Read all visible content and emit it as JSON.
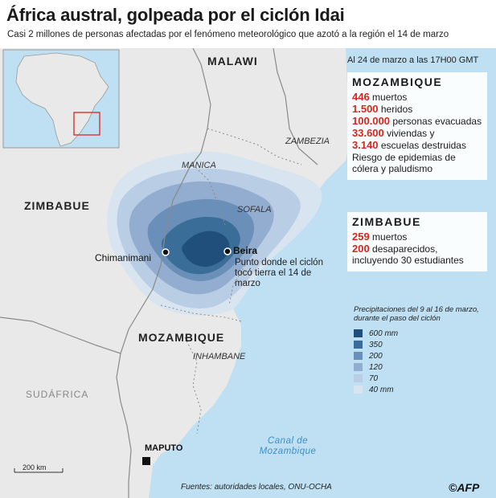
{
  "title": "África austral, golpeada por el ciclón Idai",
  "subtitle": "Casi 2 millones de personas afectadas por el fenómeno meteorológico que azotó a la región el 14 de marzo",
  "countries": {
    "malawi": "MALAWI",
    "zimbabue": "ZIMBABUE",
    "mozambique": "MOZAMBIQUE",
    "sudafrica": "SUDÁFRICA"
  },
  "provinces": {
    "zambezia": "ZAMBEZIA",
    "manica": "MANICA",
    "sofala": "SOFALA",
    "inhambane": "INHAMBANE"
  },
  "places": {
    "chimanimani": "Chimanimani",
    "beira": "Beira",
    "maputo": "MAPUTO",
    "beira_note": "Punto donde el ciclón tocó tierra el 14 de marzo",
    "canal": "Canal de Mozambique"
  },
  "info": {
    "header": "Al 24 de marzo a las 17H00 GMT",
    "mozambique": {
      "title": "MOZAMBIQUE",
      "stats": [
        {
          "num": "446",
          "text": " muertos"
        },
        {
          "num": "1.500",
          "text": " heridos"
        },
        {
          "num": "100.000",
          "text": " personas evacuadas"
        },
        {
          "num": "33.600",
          "text": " viviendas y"
        },
        {
          "num": "3.140",
          "text": " escuelas destruidas"
        },
        {
          "num": "",
          "text": "Riesgo de epidemias de cólera y paludismo"
        }
      ]
    },
    "zimbabue": {
      "title": "ZIMBABUE",
      "stats": [
        {
          "num": "259",
          "text": " muertos"
        },
        {
          "num": "200",
          "text": " desaparecidos, incluyendo 30 estudiantes"
        }
      ]
    }
  },
  "legend": {
    "title": "Precipitaciones del 9 al 16 de marzo, durante el paso del ciclón",
    "items": [
      {
        "label": "600 mm",
        "color": "#1f4f7a"
      },
      {
        "label": "350",
        "color": "#3b6d99"
      },
      {
        "label": "200",
        "color": "#6a8fb8"
      },
      {
        "label": "120",
        "color": "#93add0"
      },
      {
        "label": "70",
        "color": "#b9cde4"
      },
      {
        "label": "40 mm",
        "color": "#d8e5f1"
      }
    ]
  },
  "scale_label": "200 km",
  "sources": "Fuentes: autoridades locales, ONU-OCHA",
  "logo": "©AFP",
  "colors": {
    "land": "#e9e9e9",
    "sea": "#bfe0f2",
    "border": "#8a8a8a",
    "accent_red": "#d9251d"
  }
}
